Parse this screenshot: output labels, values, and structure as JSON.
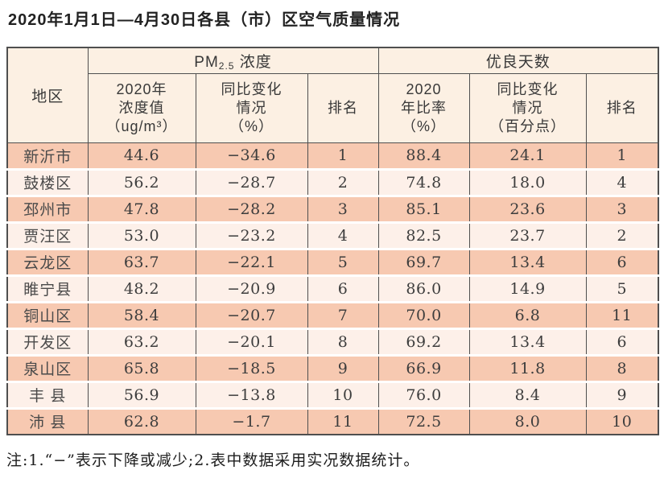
{
  "title": "2020年1月1日—4月30日各县（市）区空气质量情况",
  "colors": {
    "row_salmon": "#f7c9b1",
    "row_light": "#fdf0e9",
    "header_bg": "#fcf0e3",
    "border_dark": "#4f4f4f"
  },
  "table": {
    "region_header": "地区",
    "group1": {
      "prefix": "PM",
      "sub": "2.5",
      "suffix": " 浓度"
    },
    "group2": "优良天数",
    "sub_headers": {
      "pm25_value": "2020年\n浓度值\n（ug/m³）",
      "pm25_change": "同比变化\n情况\n（%）",
      "pm25_rank": "排名",
      "good_rate": "2020\n年比率\n（%）",
      "good_change": "同比变化\n情况\n（百分点）",
      "good_rank": "排名"
    },
    "columns_order": [
      "region",
      "pm25_value",
      "pm25_change",
      "pm25_rank",
      "good_rate",
      "good_change",
      "good_rank"
    ],
    "rows": [
      {
        "region": "新沂市",
        "pm25_value": "44.6",
        "pm25_change": "−34.6",
        "pm25_rank": "1",
        "good_rate": "88.4",
        "good_change": "24.1",
        "good_rank": "1"
      },
      {
        "region": "鼓楼区",
        "pm25_value": "56.2",
        "pm25_change": "−28.7",
        "pm25_rank": "2",
        "good_rate": "74.8",
        "good_change": "18.0",
        "good_rank": "4"
      },
      {
        "region": "邳州市",
        "pm25_value": "47.8",
        "pm25_change": "−28.2",
        "pm25_rank": "3",
        "good_rate": "85.1",
        "good_change": "23.6",
        "good_rank": "3"
      },
      {
        "region": "贾汪区",
        "pm25_value": "53.0",
        "pm25_change": "−23.2",
        "pm25_rank": "4",
        "good_rate": "82.5",
        "good_change": "23.7",
        "good_rank": "2"
      },
      {
        "region": "云龙区",
        "pm25_value": "63.7",
        "pm25_change": "−22.1",
        "pm25_rank": "5",
        "good_rate": "69.7",
        "good_change": "13.4",
        "good_rank": "6"
      },
      {
        "region": "睢宁县",
        "pm25_value": "48.2",
        "pm25_change": "−20.9",
        "pm25_rank": "6",
        "good_rate": "86.0",
        "good_change": "14.9",
        "good_rank": "5"
      },
      {
        "region": "铜山区",
        "pm25_value": "58.4",
        "pm25_change": "−20.7",
        "pm25_rank": "7",
        "good_rate": "70.0",
        "good_change": "6.8",
        "good_rank": "11"
      },
      {
        "region": "开发区",
        "pm25_value": "63.2",
        "pm25_change": "−20.1",
        "pm25_rank": "8",
        "good_rate": "69.2",
        "good_change": "13.4",
        "good_rank": "6"
      },
      {
        "region": "泉山区",
        "pm25_value": "65.8",
        "pm25_change": "−18.5",
        "pm25_rank": "9",
        "good_rate": "66.9",
        "good_change": "11.8",
        "good_rank": "8"
      },
      {
        "region": "丰 县",
        "pm25_value": "56.9",
        "pm25_change": "−13.8",
        "pm25_rank": "10",
        "good_rate": "76.0",
        "good_change": "8.4",
        "good_rank": "9"
      },
      {
        "region": "沛 县",
        "pm25_value": "62.8",
        "pm25_change": "−1.7",
        "pm25_rank": "11",
        "good_rate": "72.5",
        "good_change": "8.0",
        "good_rank": "10"
      }
    ]
  },
  "note": "注:1.“−”表示下降或减少;2.表中数据采用实况数据统计。"
}
